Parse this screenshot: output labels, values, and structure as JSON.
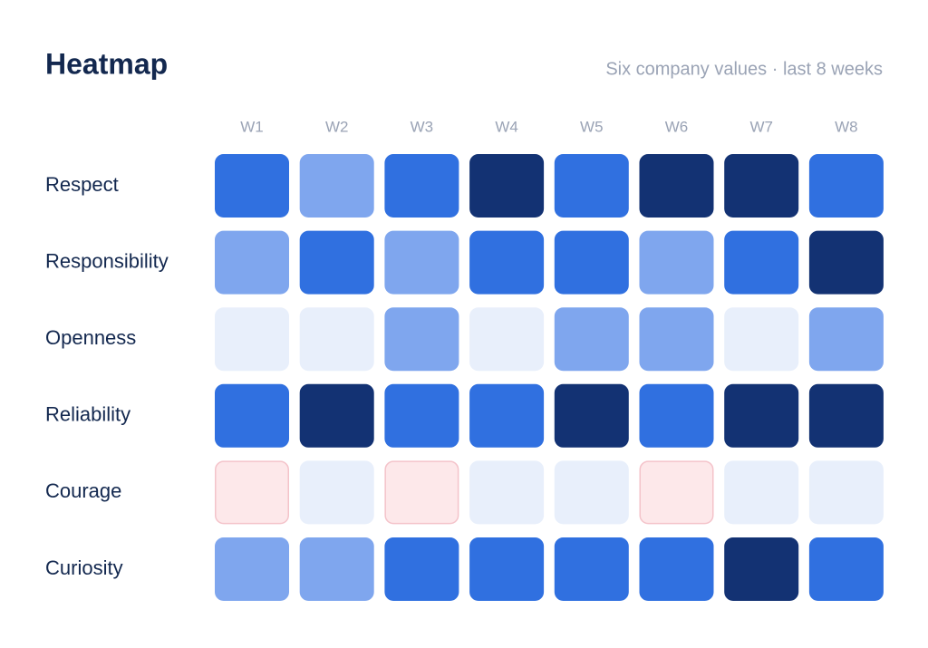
{
  "chart_data": {
    "type": "heatmap",
    "title": "Heatmap",
    "subtitle": "Six company values · last 8 weeks",
    "columns": [
      "W1",
      "W2",
      "W3",
      "W4",
      "W5",
      "W6",
      "W7",
      "W8"
    ],
    "rows": [
      "Respect",
      "Responsibility",
      "Openness",
      "Reliability",
      "Courage",
      "Curiosity"
    ],
    "values": [
      [
        3,
        2,
        3,
        4,
        3,
        4,
        4,
        3
      ],
      [
        2,
        3,
        2,
        3,
        3,
        2,
        3,
        4
      ],
      [
        1,
        1,
        2,
        1,
        2,
        2,
        1,
        2
      ],
      [
        3,
        4,
        3,
        3,
        4,
        3,
        4,
        4
      ],
      [
        0,
        1,
        0,
        1,
        1,
        0,
        1,
        1
      ],
      [
        2,
        2,
        3,
        3,
        3,
        3,
        4,
        3
      ]
    ],
    "colors": [
      "#fde8ea",
      "#e8effb",
      "#7fa6ee",
      "#3070e0",
      "#133273"
    ],
    "border_colors": [
      "#f4c3ca",
      "#e8effb",
      "#7fa6ee",
      "#3070e0",
      "#133273"
    ]
  }
}
